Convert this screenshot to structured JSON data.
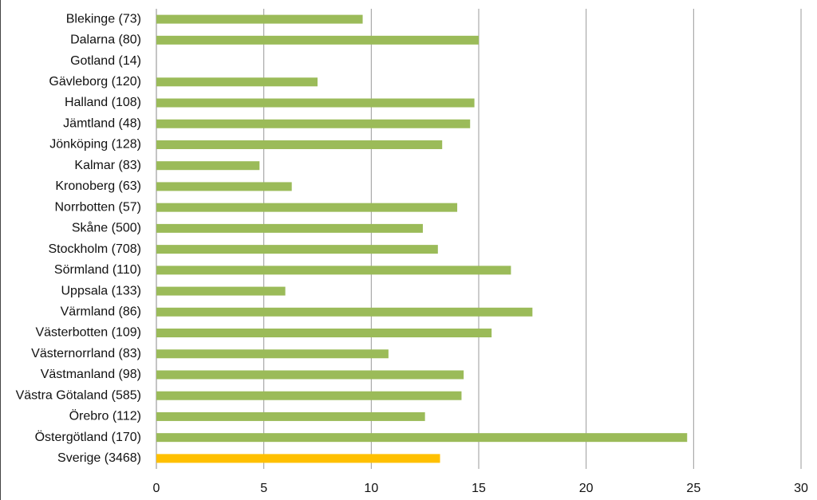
{
  "chart_data": {
    "type": "bar",
    "orientation": "horizontal",
    "categories": [
      "Blekinge (73)",
      "Dalarna (80)",
      "Gotland (14)",
      "Gävleborg (120)",
      "Halland (108)",
      "Jämtland (48)",
      "Jönköping (128)",
      "Kalmar (83)",
      "Kronoberg (63)",
      "Norrbotten (57)",
      "Skåne (500)",
      "Stockholm (708)",
      "Sörmland (110)",
      "Uppsala (133)",
      "Värmland (86)",
      "Västerbotten (109)",
      "Västernorrland (83)",
      "Västmanland (98)",
      "Västra Götaland (585)",
      "Örebro (112)",
      "Östergötland (170)",
      "Sverige (3468)"
    ],
    "values": [
      9.6,
      15.0,
      0,
      7.5,
      14.8,
      14.6,
      13.3,
      4.8,
      6.3,
      14.0,
      12.4,
      13.1,
      16.5,
      6.0,
      17.5,
      15.6,
      10.8,
      14.3,
      14.2,
      12.5,
      24.7,
      13.2
    ],
    "colors": [
      "#9bbb59",
      "#9bbb59",
      "#9bbb59",
      "#9bbb59",
      "#9bbb59",
      "#9bbb59",
      "#9bbb59",
      "#9bbb59",
      "#9bbb59",
      "#9bbb59",
      "#9bbb59",
      "#9bbb59",
      "#9bbb59",
      "#9bbb59",
      "#9bbb59",
      "#9bbb59",
      "#9bbb59",
      "#9bbb59",
      "#9bbb59",
      "#9bbb59",
      "#9bbb59",
      "#ffc000"
    ],
    "xlim": [
      0,
      30
    ],
    "xticks": [
      0,
      5,
      10,
      15,
      20,
      25,
      30
    ],
    "grid": true
  }
}
